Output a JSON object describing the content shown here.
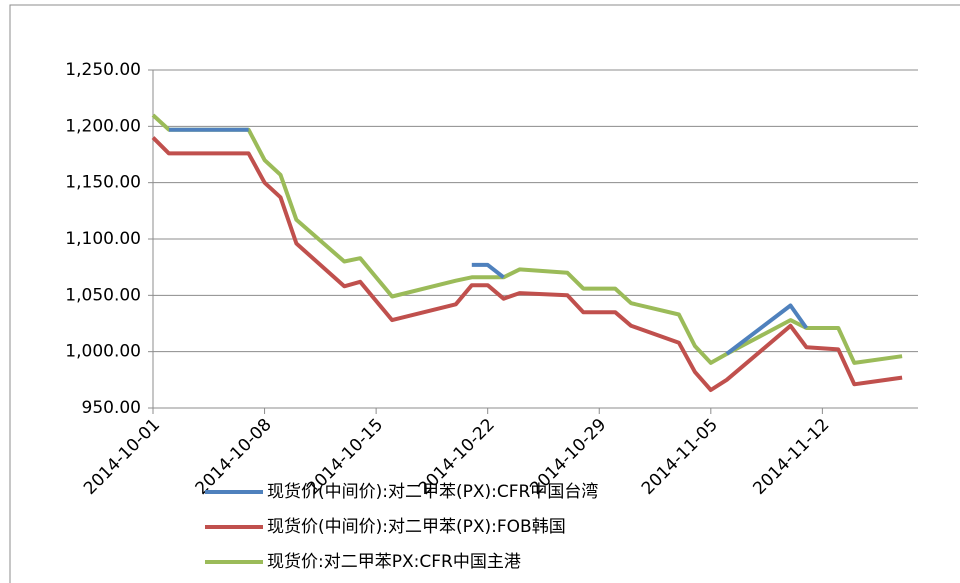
{
  "chart_data": {
    "type": "line",
    "x": [
      "2014-10-01",
      "2014-10-02",
      "2014-10-07",
      "2014-10-08",
      "2014-10-09",
      "2014-10-10",
      "2014-10-13",
      "2014-10-14",
      "2014-10-16",
      "2014-10-20",
      "2014-10-21",
      "2014-10-22",
      "2014-10-23",
      "2014-10-24",
      "2014-10-27",
      "2014-10-28",
      "2014-10-30",
      "2014-10-31",
      "2014-11-03",
      "2014-11-04",
      "2014-11-05",
      "2014-11-06",
      "2014-11-10",
      "2014-11-11",
      "2014-11-13",
      "2014-11-14",
      "2014-11-17"
    ],
    "series": [
      {
        "name": "现货价(中间价):对二甲苯(PX):CFR中国台湾",
        "color": "#4f81bd",
        "values": [
          null,
          1197,
          1197,
          null,
          null,
          null,
          null,
          null,
          null,
          null,
          1077,
          1077,
          1066,
          null,
          null,
          null,
          null,
          null,
          null,
          null,
          null,
          998,
          1041,
          1021,
          null,
          null,
          null
        ]
      },
      {
        "name": "现货价(中间价):对二甲苯(PX):FOB韩国",
        "color": "#c0504d",
        "values": [
          1190,
          1176,
          1176,
          1150,
          1137,
          1096,
          1058,
          1062,
          1028,
          1042,
          1059,
          1059,
          1047,
          1052,
          1050,
          1035,
          1035,
          1023,
          1008,
          982,
          966,
          975,
          1023,
          1004,
          1002,
          971,
          977
        ]
      },
      {
        "name": "现货价:对二甲苯PX:CFR中国主港",
        "color": "#9bbb59",
        "values": [
          1210,
          1197,
          1197,
          1170,
          1157,
          1117,
          1080,
          1083,
          1049,
          1063,
          1066,
          1066,
          1066,
          1073,
          1070,
          1056,
          1056,
          1043,
          1033,
          1005,
          990,
          998,
          1028,
          1021,
          1021,
          990,
          996
        ]
      }
    ],
    "xlim": [
      "2014-10-01",
      "2014-11-18"
    ],
    "xticks": [
      "2014-10-01",
      "2014-10-08",
      "2014-10-15",
      "2014-10-22",
      "2014-10-29",
      "2014-11-05",
      "2014-11-12"
    ],
    "ylim": [
      950,
      1250
    ],
    "yticks": [
      {
        "value": 950,
        "label": "950.00"
      },
      {
        "value": 1000,
        "label": "1,000.00"
      },
      {
        "value": 1050,
        "label": "1,050.00"
      },
      {
        "value": 1100,
        "label": "1,100.00"
      },
      {
        "value": 1150,
        "label": "1,150.00"
      },
      {
        "value": 1200,
        "label": "1,200.00"
      },
      {
        "value": 1250,
        "label": "1,250.00"
      }
    ],
    "grid": true
  }
}
